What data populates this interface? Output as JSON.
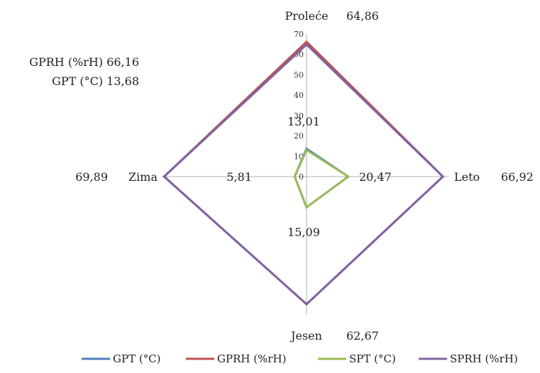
{
  "chart_data": {
    "type": "radar",
    "axes": [
      "Proleće",
      "Leto",
      "Jesen",
      "Zima"
    ],
    "rmax": 70,
    "ticks": [
      "0",
      "10",
      "20",
      "30",
      "40",
      "50",
      "60",
      "70"
    ],
    "tick_values": [
      0,
      10,
      20,
      30,
      40,
      50,
      60,
      70
    ],
    "series": [
      {
        "name": "GPT (°C)",
        "color": "#4a7ebb",
        "values": [
          13.68,
          20.47,
          15.09,
          5.81
        ]
      },
      {
        "name": "GPRH (%rH)",
        "color": "#c0504d",
        "values": [
          66.16,
          66.92,
          62.67,
          69.89
        ]
      },
      {
        "name": "SPT (°C)",
        "color": "#9bbb59",
        "values": [
          13.01,
          20.47,
          15.09,
          5.81
        ]
      },
      {
        "name": "SPRH (%rH)",
        "color": "#8064a2",
        "values": [
          64.86,
          66.92,
          62.67,
          69.89
        ]
      }
    ],
    "annotations": {
      "top_value": "64,86",
      "right_value": "66,92",
      "bottom_value": "62,67",
      "left_value": "69,89",
      "gprh_label": "GPRH (%rH) 66,16",
      "gpt_label": "GPT (°C) 13,68",
      "top_inner": "13,01",
      "right_inner": "20,47",
      "bottom_inner": "15,09",
      "left_inner": "5,81"
    },
    "legend_position": "bottom",
    "grid": false
  }
}
